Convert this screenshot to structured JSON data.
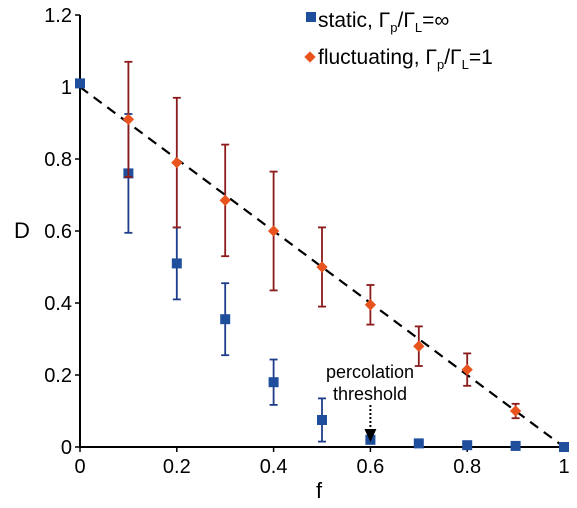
{
  "chart_data": {
    "type": "scatter",
    "xlabel": "f",
    "ylabel": "D",
    "xlim": [
      0,
      1
    ],
    "ylim": [
      0,
      1.2
    ],
    "x_ticks": [
      "0",
      "0.2",
      "0.4",
      "0.6",
      "0.8",
      "1"
    ],
    "y_ticks": [
      "0",
      "0.2",
      "0.4",
      "0.6",
      "0.8",
      "1",
      "1.2"
    ],
    "grid": false,
    "legend_position": "top-right",
    "colors": {
      "static": "#1f4e9c",
      "fluctuating": "#e8531e",
      "static_err": "#1f3c8a",
      "fluct_err": "#8b1a1a"
    },
    "series": [
      {
        "name": "static, Γp/ΓL=∞",
        "legend": {
          "prefix": "static, Γ",
          "sub1": "p",
          "mid": "/Γ",
          "sub2": "L",
          "suffix": "=∞"
        },
        "marker": "square",
        "x": [
          0,
          0.1,
          0.2,
          0.3,
          0.4,
          0.5,
          0.6,
          0.7,
          0.8,
          0.9,
          1.0
        ],
        "y": [
          1.01,
          0.76,
          0.51,
          0.355,
          0.18,
          0.075,
          0.02,
          0.01,
          0.005,
          0.003,
          0.0
        ],
        "err": [
          0,
          0.165,
          0.1,
          0.1,
          0.063,
          0.06,
          0,
          0,
          0,
          0,
          0
        ]
      },
      {
        "name": "fluctuating, Γp/ΓL=1",
        "legend": {
          "prefix": "fluctuating, Γ",
          "sub1": "p",
          "mid": "/Γ",
          "sub2": "L",
          "suffix": "=1"
        },
        "marker": "diamond",
        "x": [
          0.1,
          0.2,
          0.3,
          0.4,
          0.5,
          0.6,
          0.7,
          0.8,
          0.9
        ],
        "y": [
          0.91,
          0.79,
          0.685,
          0.6,
          0.5,
          0.395,
          0.28,
          0.215,
          0.1
        ],
        "err": [
          0.16,
          0.18,
          0.155,
          0.165,
          0.11,
          0.055,
          0.055,
          0.045,
          0.02
        ]
      }
    ],
    "reference_line": {
      "style": "dashed",
      "x": [
        0,
        1
      ],
      "y": [
        1.0,
        0.0
      ]
    },
    "annotation": {
      "lines": [
        "percolation",
        "threshold"
      ],
      "arrow_x": 0.6
    }
  }
}
